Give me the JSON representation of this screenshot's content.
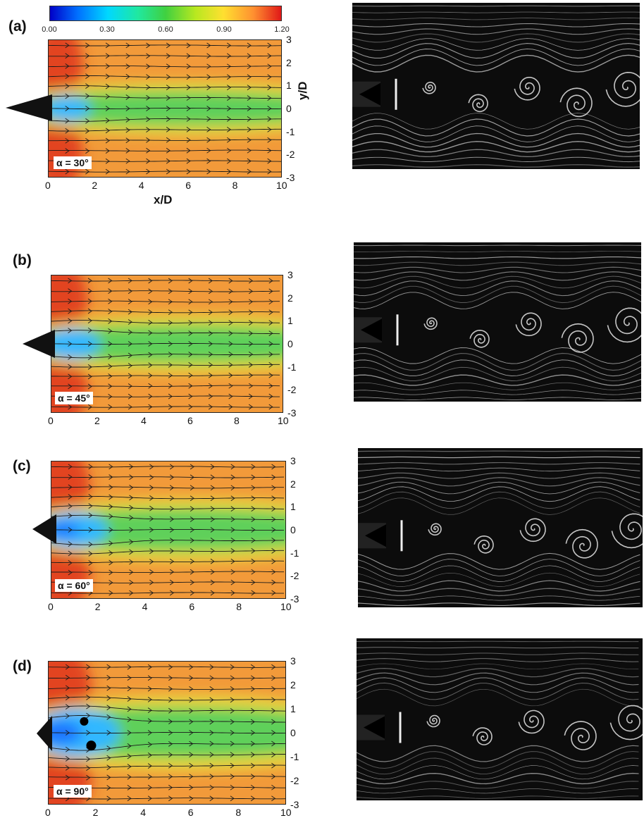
{
  "figure": {
    "colorbar": {
      "ticks": [
        "0.00",
        "0.30",
        "0.60",
        "0.90",
        "1.20"
      ],
      "range": [
        0,
        1.2
      ]
    },
    "axes": {
      "xlabel": "x/D",
      "ylabel": "y/D",
      "xticks": [
        "0",
        "2",
        "4",
        "6",
        "8",
        "10"
      ],
      "yticks": [
        "3",
        "2",
        "1",
        "0",
        "-1",
        "-2",
        "-3"
      ],
      "xrange": [
        0,
        10
      ],
      "yrange": [
        -3,
        3
      ]
    },
    "panels": [
      {
        "label": "(a)",
        "alpha": "α = 30°",
        "angle_deg": 30
      },
      {
        "label": "(b)",
        "alpha": "α = 45°",
        "angle_deg": 45
      },
      {
        "label": "(c)",
        "alpha": "α = 60°",
        "angle_deg": 60
      },
      {
        "label": "(d)",
        "alpha": "α = 90°",
        "angle_deg": 90
      }
    ],
    "colors": {
      "freestream": "#f29a3a",
      "wake": "#5ed05a",
      "recirculation": "#30b8ff",
      "edge": "#e03a20"
    }
  }
}
